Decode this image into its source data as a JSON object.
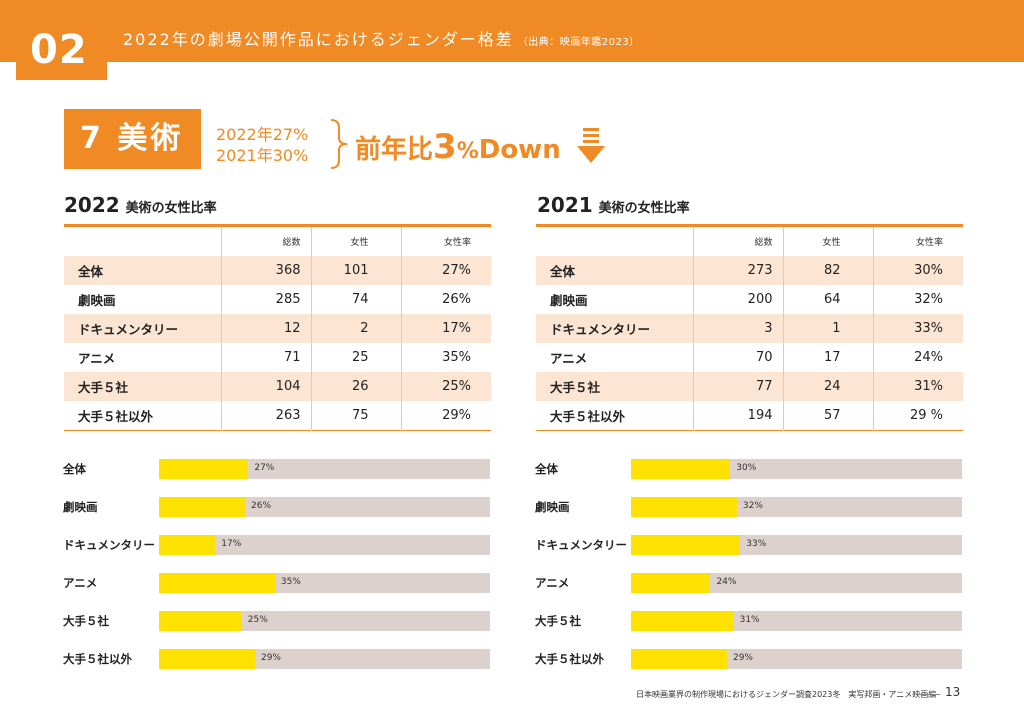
{
  "header": {
    "section_number": "02",
    "title": "2022年の劇場公開作品におけるジェンダー格差",
    "source": "（出典：映画年鑑2023）"
  },
  "category": {
    "label": "7 美術",
    "rate_2022": "2022年27%",
    "rate_2021": "2021年30%",
    "comparison_prefix": "前年比",
    "comparison_number": "3",
    "comparison_unit": "%",
    "comparison_direction": "Down",
    "icon": "down-arrow-icon"
  },
  "tables": [
    {
      "year": "2022",
      "subtitle": "美術の女性比率",
      "headers": [
        "",
        "総数",
        "女性",
        "女性率"
      ],
      "rows": [
        [
          "全体",
          "368",
          "101",
          "27%"
        ],
        [
          "劇映画",
          "285",
          "74",
          "26%"
        ],
        [
          "ドキュメンタリー",
          "12",
          "2",
          "17%"
        ],
        [
          "アニメ",
          "71",
          "25",
          "35%"
        ],
        [
          "大手５社",
          "104",
          "26",
          "25%"
        ],
        [
          "大手５社以外",
          "263",
          "75",
          "29%"
        ]
      ]
    },
    {
      "year": "2021",
      "subtitle": "美術の女性比率",
      "headers": [
        "",
        "総数",
        "女性",
        "女性率"
      ],
      "rows": [
        [
          "全体",
          "273",
          "82",
          "30%"
        ],
        [
          "劇映画",
          "200",
          "64",
          "32%"
        ],
        [
          "ドキュメンタリー",
          "3",
          "1",
          "33%"
        ],
        [
          "アニメ",
          "70",
          "17",
          "24%"
        ],
        [
          "大手５社",
          "77",
          "24",
          "31%"
        ],
        [
          "大手５社以外",
          "194",
          "57",
          "29 %"
        ]
      ]
    }
  ],
  "chart_data": [
    {
      "type": "bar",
      "categories": [
        "全体",
        "劇映画",
        "ドキュメンタリー",
        "アニメ",
        "大手５社",
        "大手５社以外"
      ],
      "values": [
        27,
        26,
        17,
        35,
        25,
        29
      ],
      "labels": [
        "27%",
        "26%",
        "17%",
        "35%",
        "25%",
        "29%"
      ],
      "xlim": [
        0,
        100
      ],
      "colors": {
        "fill": "#ffe100",
        "track": "#dcd1cc"
      }
    },
    {
      "type": "bar",
      "categories": [
        "全体",
        "劇映画",
        "ドキュメンタリー",
        "アニメ",
        "大手５社",
        "大手５社以外"
      ],
      "values": [
        30,
        32,
        33,
        24,
        31,
        29
      ],
      "labels": [
        "30%",
        "32%",
        "33%",
        "24%",
        "31%",
        "29%"
      ],
      "xlim": [
        0,
        100
      ],
      "colors": {
        "fill": "#ffe100",
        "track": "#dcd1cc"
      }
    }
  ],
  "footer": {
    "text": "日本映画業界の制作現場におけるジェンダー調査2023冬　実写邦画・アニメ映画編",
    "page": "13"
  },
  "colors": {
    "accent": "#f08a24",
    "shade": "#fde5d4",
    "bar_fill": "#ffe100",
    "bar_track": "#dcd1cc"
  }
}
